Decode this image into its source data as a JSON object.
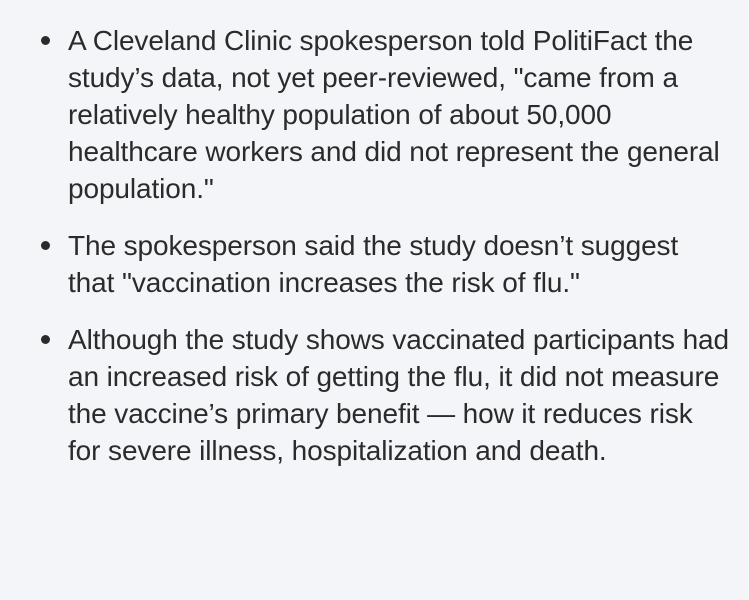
{
  "bullets": [
    {
      "text": "A Cleveland Clinic spokesperson told PolitiFact the study’s data, not yet peer-reviewed, \"came from a relatively healthy population of about 50,000 healthcare workers and did not represent the general population.\""
    },
    {
      "text": "The spokesperson said the study doesn’t suggest that \"vaccination increases the risk of flu.\""
    },
    {
      "text": "Although the study shows vaccinated participants had an increased risk of getting the flu, it did not measure the vaccine’s primary benefit — how it reduces risk for severe illness, hospitalization and death."
    }
  ]
}
